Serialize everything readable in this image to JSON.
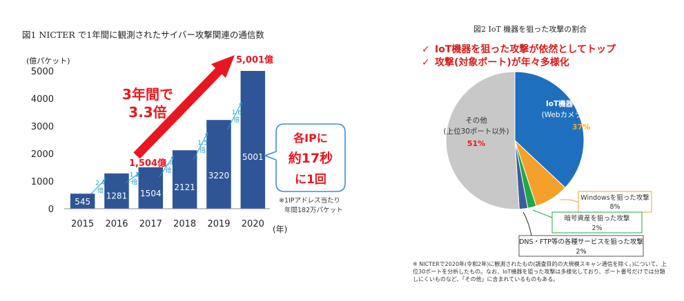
{
  "fig1": {
    "title": "図1  NICTER で1年間に観測されたサイバー攻撃関連の通信数",
    "unit_label": "(億パケット)",
    "x_unit": "(年)",
    "growth_label_1": "3年間で",
    "growth_label_2": "3.3倍",
    "callout_1504": "1,504億",
    "callout_5001": "5,001億",
    "bubble_line1": "各IPに",
    "bubble_line2": "約17秒",
    "bubble_line3": "に1回",
    "note_line1": "※1IPアドレス当たり",
    "note_line2": "年間182万パケット",
    "growth_rates": [
      {
        "from": "2015",
        "to": "2016",
        "label": "2.4倍"
      },
      {
        "from": "2016",
        "to": "2017",
        "label": "1.2倍"
      },
      {
        "from": "2017",
        "to": "2018",
        "label": "1.4倍"
      },
      {
        "from": "2018",
        "to": "2019",
        "label": "1.5倍"
      },
      {
        "from": "2019",
        "to": "2020",
        "label": "1.6倍"
      }
    ],
    "colors": {
      "bar": "#2f5596",
      "accent": "#e8171f",
      "arrow_blue": "#1e9bd7"
    }
  },
  "fig2": {
    "title": "図2  IoT 機器を狙った攻撃の割合",
    "check_1": "IoT機器を狙った攻撃が依然としてトップ",
    "check_2": "攻撃(対象ポート)が年々多様化",
    "labels": {
      "iot_1": "IoT機器を狙った攻撃",
      "iot_2": "(Webカメラ、ルータ等)",
      "iot_pct": "37%",
      "other_1": "その他",
      "other_2": "(上位30ポート以外)",
      "other_pct": "51%",
      "windows_1": "Windowsを狙った攻撃",
      "windows_pct": "8%",
      "crypto_1": "暗号資産を狙った攻撃",
      "crypto_pct": "2%",
      "dns_1": "DNS・FTP等の各種サービスを狙った攻撃",
      "dns_pct": "2%"
    },
    "footnote": "※ NICTERで2020年(令和2年)に観測されたもの(調査目的の大規模スキャン通信を除く。)について、上位30ポートを分析したもの。なお、IoT機器を狙った攻撃は多様化しており、ポート番号だけでは分類しにくいものなど、「その他」に含まれているものもある。",
    "colors": {
      "iot": "#1f6fbf",
      "windows": "#f5a02a",
      "crypto": "#1ea84a",
      "dns": "#3c5e9e",
      "other": "#c8c8c8"
    }
  },
  "chart_data": [
    {
      "type": "bar",
      "title": "図1  NICTER で1年間に観測されたサイバー攻撃関連の通信数",
      "categories": [
        "2015",
        "2016",
        "2017",
        "2018",
        "2019",
        "2020"
      ],
      "values": [
        545,
        1281,
        1504,
        2121,
        3220,
        5001
      ],
      "xlabel": "(年)",
      "ylabel": "(億パケット)",
      "ylim": [
        0,
        5000
      ],
      "yticks": [
        0,
        1000,
        2000,
        3000,
        4000,
        5000
      ],
      "grid": false
    },
    {
      "type": "pie",
      "title": "図2  IoT 機器を狙った攻撃の割合",
      "slices": [
        {
          "label": "IoT機器を狙った攻撃 (Webカメラ、ルータ等)",
          "value": 37
        },
        {
          "label": "Windowsを狙った攻撃",
          "value": 8
        },
        {
          "label": "暗号資産を狙った攻撃",
          "value": 2
        },
        {
          "label": "DNS・FTP等の各種サービスを狙った攻撃",
          "value": 2
        },
        {
          "label": "その他 (上位30ポート以外)",
          "value": 51
        }
      ]
    }
  ]
}
